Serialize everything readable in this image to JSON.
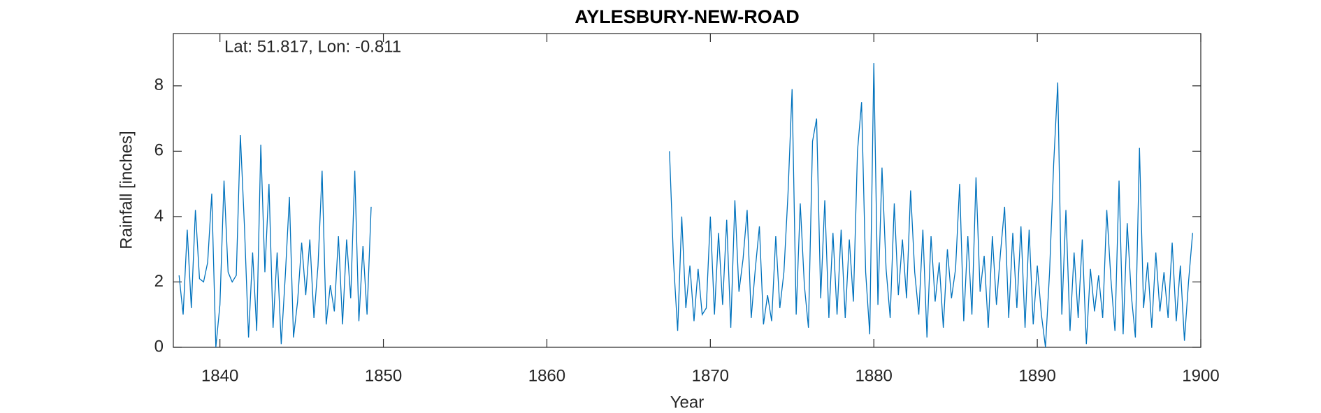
{
  "chart_data": {
    "type": "line",
    "title": "AYLESBURY-NEW-ROAD",
    "annotation": "Lat: 51.817, Lon: -0.811",
    "x_label": "Year",
    "y_label": "Rainfall [inches]",
    "color": "#0072bd",
    "grid": false,
    "xlim": [
      1837.15,
      1900
    ],
    "xticks": [
      1840,
      1850,
      1860,
      1870,
      1880,
      1890,
      1900
    ],
    "ylim": [
      0,
      9.6
    ],
    "yticks": [
      0,
      2,
      4,
      6,
      8
    ],
    "x": [
      1837.5,
      1837.75,
      1838,
      1838.25,
      1838.5,
      1838.75,
      1839,
      1839.25,
      1839.5,
      1839.75,
      1840,
      1840.25,
      1840.5,
      1840.75,
      1841,
      1841.25,
      1841.5,
      1841.75,
      1842,
      1842.25,
      1842.5,
      1842.75,
      1843,
      1843.25,
      1843.5,
      1843.75,
      1844,
      1844.25,
      1844.5,
      1844.75,
      1845,
      1845.25,
      1845.5,
      1845.75,
      1846,
      1846.25,
      1846.5,
      1846.75,
      1847,
      1847.25,
      1847.5,
      1847.75,
      1848,
      1848.25,
      1848.5,
      1848.75,
      1849,
      1849.25,
      1858,
      1867.5,
      1867.75,
      1868,
      1868.25,
      1868.5,
      1868.75,
      1869,
      1869.25,
      1869.5,
      1869.75,
      1870,
      1870.25,
      1870.5,
      1870.75,
      1871,
      1871.25,
      1871.5,
      1871.75,
      1872,
      1872.25,
      1872.5,
      1872.75,
      1873,
      1873.25,
      1873.5,
      1873.75,
      1874,
      1874.25,
      1874.5,
      1874.75,
      1875,
      1875.25,
      1875.5,
      1875.75,
      1876,
      1876.25,
      1876.5,
      1876.75,
      1877,
      1877.25,
      1877.5,
      1877.75,
      1878,
      1878.25,
      1878.5,
      1878.75,
      1879,
      1879.25,
      1879.5,
      1879.75,
      1880,
      1880.25,
      1880.5,
      1880.75,
      1881,
      1881.25,
      1881.5,
      1881.75,
      1882,
      1882.25,
      1882.5,
      1882.75,
      1883,
      1883.25,
      1883.5,
      1883.75,
      1884,
      1884.25,
      1884.5,
      1884.75,
      1885,
      1885.25,
      1885.5,
      1885.75,
      1886,
      1886.25,
      1886.5,
      1886.75,
      1887,
      1887.25,
      1887.5,
      1887.75,
      1888,
      1888.25,
      1888.5,
      1888.75,
      1889,
      1889.25,
      1889.5,
      1889.75,
      1890,
      1890.25,
      1890.5,
      1890.75,
      1891,
      1891.25,
      1891.5,
      1891.75,
      1892,
      1892.25,
      1892.5,
      1892.75,
      1893,
      1893.25,
      1893.5,
      1893.75,
      1894,
      1894.25,
      1894.5,
      1894.75,
      1895,
      1895.25,
      1895.5,
      1895.75,
      1896,
      1896.25,
      1896.5,
      1896.75,
      1897,
      1897.25,
      1897.5,
      1897.75,
      1898,
      1898.25,
      1898.5,
      1898.75,
      1899,
      1899.25,
      1899.5
    ],
    "values": [
      2.2,
      1.0,
      3.6,
      1.2,
      4.2,
      2.1,
      2.0,
      2.6,
      4.7,
      0,
      1.3,
      5.1,
      2.3,
      2.0,
      2.2,
      6.5,
      3.7,
      0.3,
      2.9,
      0.5,
      6.2,
      2.3,
      5.0,
      0.6,
      2.9,
      0.1,
      2.2,
      4.6,
      0.3,
      1.4,
      3.2,
      1.6,
      3.3,
      0.9,
      2.5,
      5.4,
      0.7,
      1.9,
      1.1,
      3.4,
      0.7,
      3.3,
      1.5,
      5.4,
      0.8,
      3.1,
      1.0,
      4.3,
      null,
      6.0,
      2.6,
      0.5,
      4.0,
      1.2,
      2.5,
      0.8,
      2.4,
      1.0,
      1.2,
      4.0,
      1.0,
      3.5,
      1.3,
      3.9,
      0.6,
      4.5,
      1.7,
      2.7,
      4.2,
      0.9,
      2.4,
      3.7,
      0.7,
      1.6,
      0.8,
      3.4,
      1.2,
      2.3,
      4.7,
      7.9,
      1.0,
      4.4,
      1.9,
      0.6,
      6.3,
      7.0,
      1.5,
      4.5,
      0.9,
      3.5,
      1.0,
      3.6,
      0.9,
      3.3,
      1.4,
      6.0,
      7.5,
      2.3,
      0.4,
      8.7,
      1.3,
      5.5,
      2.4,
      0.9,
      4.4,
      1.6,
      3.3,
      1.5,
      4.8,
      2.3,
      1.0,
      3.6,
      0.3,
      3.4,
      1.4,
      2.6,
      0.6,
      3.0,
      1.5,
      2.4,
      5.0,
      0.8,
      3.4,
      1.0,
      5.2,
      1.7,
      2.8,
      0.6,
      3.4,
      1.3,
      2.9,
      4.3,
      0.9,
      3.5,
      1.2,
      3.7,
      0.6,
      3.6,
      0.7,
      2.5,
      1.0,
      0.0,
      2.3,
      5.6,
      8.1,
      1.0,
      4.2,
      0.5,
      2.9,
      0.9,
      3.3,
      0.1,
      2.4,
      1.1,
      2.2,
      0.9,
      4.2,
      2.1,
      0.5,
      5.1,
      0.4,
      3.8,
      1.6,
      0.3,
      6.1,
      1.2,
      2.6,
      0.6,
      2.9,
      1.1,
      2.3,
      0.9,
      3.2,
      0.8,
      2.5,
      0.2,
      2.0,
      3.5
    ]
  }
}
